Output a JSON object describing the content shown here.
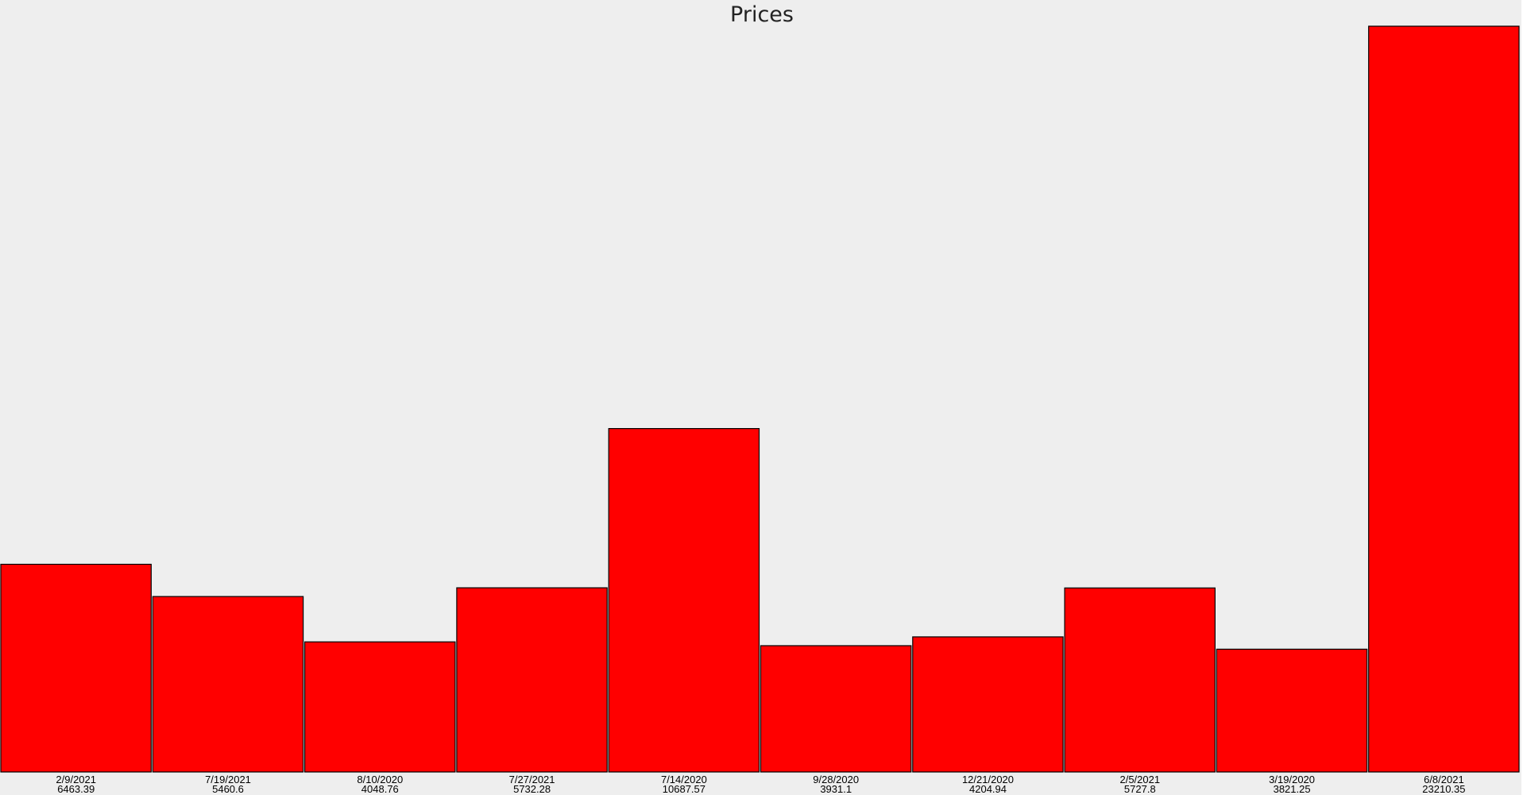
{
  "chart_data": {
    "type": "bar",
    "title": "Prices",
    "categories": [
      "2/9/2021",
      "7/19/2021",
      "8/10/2020",
      "7/27/2021",
      "7/14/2020",
      "9/28/2020",
      "12/21/2020",
      "2/5/2021",
      "3/19/2020",
      "6/8/2021"
    ],
    "value_labels": [
      "6463.39",
      "5460.6",
      "4048.76",
      "5732.28",
      "10687.57",
      "3931.1",
      "4204.94",
      "5727.8",
      "3821.25",
      "23210.35"
    ],
    "values": [
      6463.39,
      5460.6,
      4048.76,
      5732.28,
      10687.57,
      3931.1,
      4204.94,
      5727.8,
      3821.25,
      23210.35
    ],
    "xlabel": "",
    "ylabel": "",
    "ylim": [
      0,
      23210.35
    ],
    "grid": false,
    "legend": "none",
    "colors": {
      "bar_fill": "#ff0000",
      "bar_stroke": "#000000",
      "plot_background": "#eeeeee",
      "page_background": "#ffffff"
    }
  }
}
